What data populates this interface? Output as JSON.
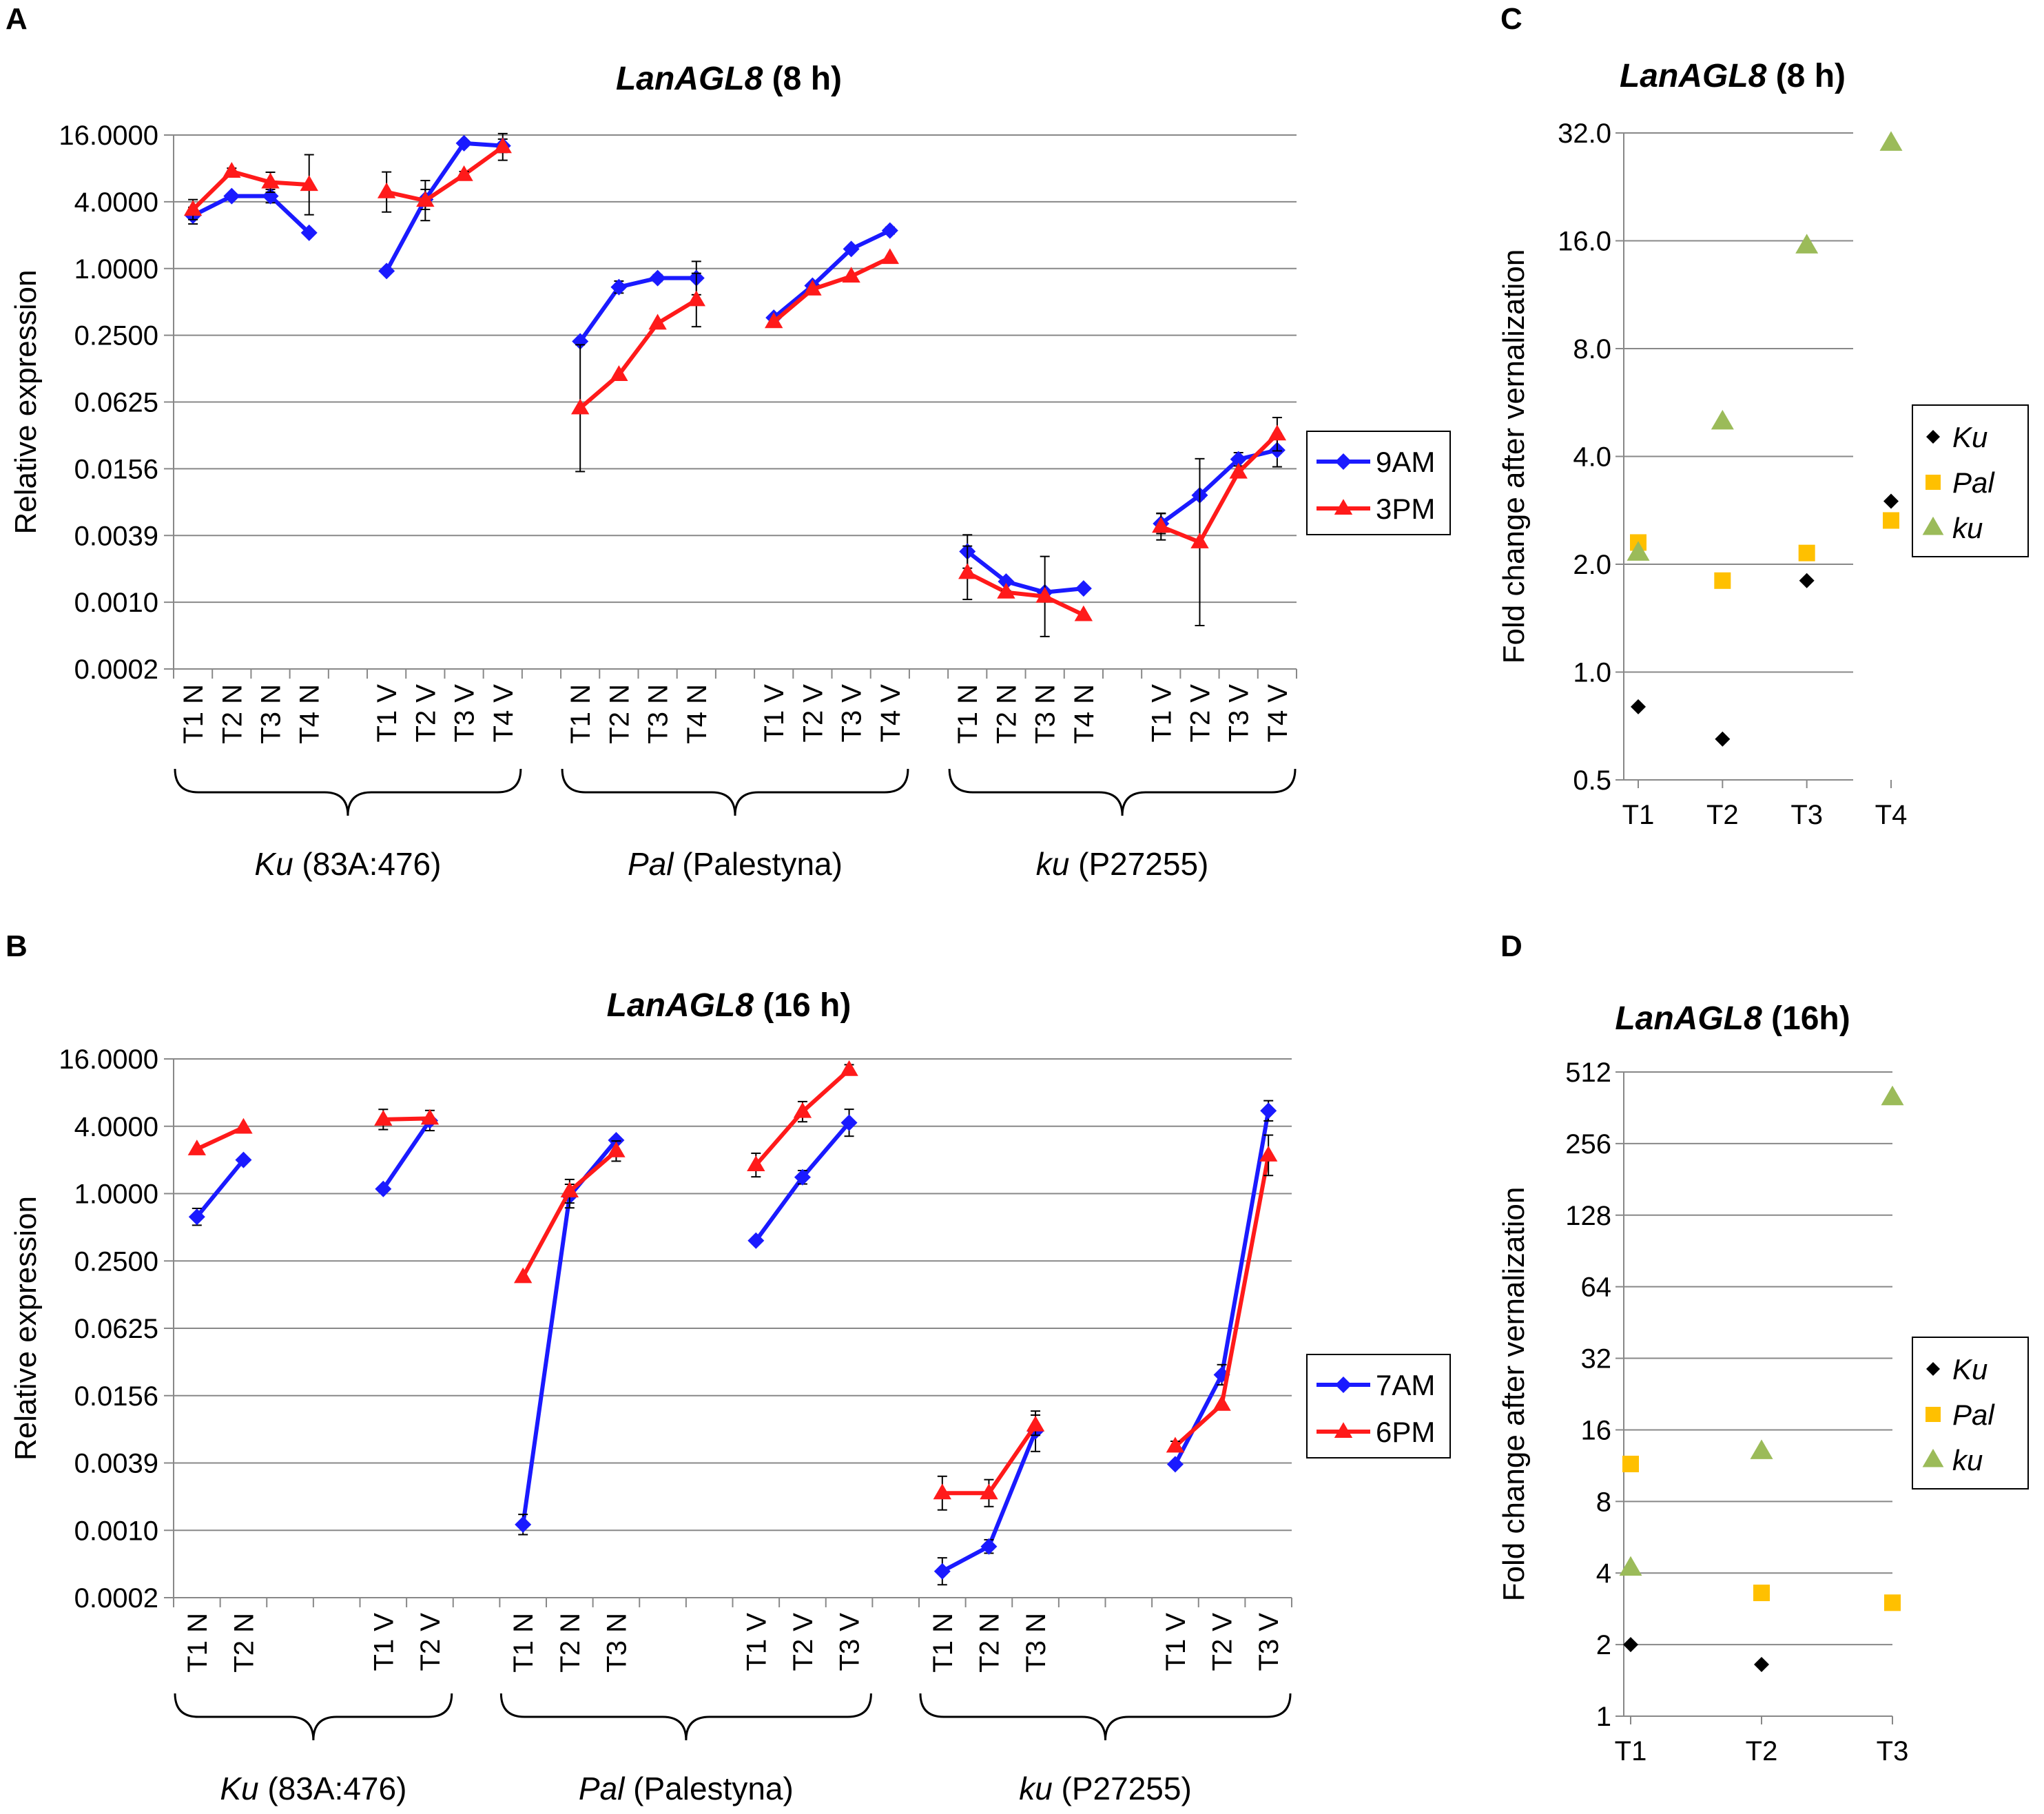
{
  "chart_data": [
    {
      "panel": "A",
      "type": "line",
      "title_gene": "LanAGL8",
      "title_rest": " (8 h)",
      "ylabel": "Relative expression",
      "yscale": "log2",
      "ylim": [
        0.000244,
        16
      ],
      "yticks": [
        "16.0000",
        "4.0000",
        "1.0000",
        "0.2500",
        "0.0625",
        "0.0156",
        "0.0039",
        "0.0010",
        "0.0002"
      ],
      "categories": [
        "T1 N",
        "T2 N",
        "T3 N",
        "T4 N",
        "",
        "T1 V",
        "T2 V",
        "T3 V",
        "T4 V",
        "",
        "T1 N",
        "T2 N",
        "T3 N",
        "T4 N",
        "",
        "T1 V",
        "T2 V",
        "T3 V",
        "T4 V",
        "",
        "T1 N",
        "T2 N",
        "T3 N",
        "T4 N",
        "",
        "T1 V",
        "T2 V",
        "T3 V",
        "T4 V"
      ],
      "groups": [
        {
          "name": "Ku",
          "rest": " (83A:476)",
          "first": 0,
          "last": 8
        },
        {
          "name": "Pal",
          "rest": " (Palestyna)",
          "first": 10,
          "last": 18
        },
        {
          "name": "ku",
          "rest": " (P27255)",
          "first": 20,
          "last": 28
        }
      ],
      "series": [
        {
          "name": "9AM",
          "color": "#1a1aff",
          "marker": "diamond",
          "segments": [
            {
              "start": 0,
              "values": [
                3.0,
                4.5,
                4.5,
                2.1
              ],
              "err": [
                0.25,
                0.08,
                0.2,
                0
              ]
            },
            {
              "start": 5,
              "values": [
                0.95,
                4.2,
                13.5,
                12.8
              ],
              "err": [
                0,
                0.3,
                0,
                0.2
              ]
            },
            {
              "start": 10,
              "values": [
                0.22,
                0.68,
                0.82,
                0.82
              ],
              "err": [
                0,
                0.18,
                0.1,
                0.5
              ]
            },
            {
              "start": 15,
              "values": [
                0.36,
                0.7,
                1.5,
                2.2
              ],
              "err": [
                0,
                0,
                0,
                0.1
              ]
            },
            {
              "start": 20,
              "values": [
                0.0028,
                0.0015,
                0.0012,
                0.0013
              ],
              "err": [
                0.5,
                0.05,
                0,
                0
              ]
            },
            {
              "start": 25,
              "values": [
                0.005,
                0.009,
                0.019,
                0.023
              ],
              "err": [
                0.3,
                0.1,
                0.2,
                0.5
              ]
            }
          ]
        },
        {
          "name": "3PM",
          "color": "#ff1a1a",
          "marker": "triangle",
          "segments": [
            {
              "start": 0,
              "values": [
                3.4,
                7.5,
                6.0,
                5.7
              ],
              "err": [
                0.3,
                0.1,
                0.3,
                0.9
              ]
            },
            {
              "start": 5,
              "values": [
                4.9,
                4.1,
                7.0,
                12.5
              ],
              "err": [
                0.6,
                0.6,
                0.1,
                0.4
              ]
            },
            {
              "start": 10,
              "values": [
                0.055,
                0.11,
                0.32,
                0.52
              ],
              "err": [
                1.9,
                0,
                0,
                0.8
              ]
            },
            {
              "start": 15,
              "values": [
                0.33,
                0.65,
                0.85,
                1.25
              ],
              "err": [
                0,
                0,
                0,
                0
              ]
            },
            {
              "start": 20,
              "values": [
                0.0018,
                0.0012,
                0.0011,
                0.00075
              ],
              "err": [
                0.8,
                0.05,
                1.2,
                0
              ]
            },
            {
              "start": 25,
              "values": [
                0.0047,
                0.0034,
                0.0145,
                0.032
              ],
              "err": [
                0.4,
                2.5,
                0,
                0.5
              ]
            }
          ]
        }
      ],
      "legend": [
        "9AM",
        "3PM"
      ]
    },
    {
      "panel": "B",
      "type": "line",
      "title_gene": "LanAGL8",
      "title_rest": " (16 h)",
      "ylabel": "Relative expression",
      "yscale": "log2",
      "ylim": [
        0.000244,
        16
      ],
      "yticks": [
        "16.0000",
        "4.0000",
        "1.0000",
        "0.2500",
        "0.0625",
        "0.0156",
        "0.0039",
        "0.0010",
        "0.0002"
      ],
      "categories": [
        "T1 N",
        "T2 N",
        "",
        "",
        "T1 V",
        "T2 V",
        "",
        "T1 N",
        "T2 N",
        "T3 N",
        "",
        "",
        "T1 V",
        "T2 V",
        "T3 V",
        "",
        "T1 N",
        "T2 N",
        "T3 N",
        "",
        "",
        "T1 V",
        "T2 V",
        "T3 V"
      ],
      "groups": [
        {
          "name": "Ku",
          "rest": " (83A:476)",
          "first": 0,
          "last": 5
        },
        {
          "name": "Pal",
          "rest": " (Palestyna)",
          "first": 7,
          "last": 14
        },
        {
          "name": "ku",
          "rest": " (P27255)",
          "first": 16,
          "last": 23
        }
      ],
      "series": [
        {
          "name": "7AM",
          "color": "#1a1aff",
          "marker": "diamond",
          "segments": [
            {
              "start": 0,
              "values": [
                0.62,
                2.0
              ],
              "err": [
                0.25,
                0
              ]
            },
            {
              "start": 4,
              "values": [
                1.1,
                4.5
              ],
              "err": [
                0,
                0.3
              ]
            },
            {
              "start": 7,
              "values": [
                0.0011,
                0.95,
                3.0
              ],
              "err": [
                0.3,
                0.35,
                0
              ]
            },
            {
              "start": 12,
              "values": [
                0.38,
                1.4,
                4.3
              ],
              "err": [
                0,
                0.2,
                0.4
              ]
            },
            {
              "start": 16,
              "values": [
                0.00042,
                0.0007,
                0.0075
              ],
              "err": [
                0.4,
                0.2,
                0.6
              ]
            },
            {
              "start": 21,
              "values": [
                0.0038,
                0.024,
                5.5
              ],
              "err": [
                0,
                0.3,
                0.3
              ]
            }
          ]
        },
        {
          "name": "6PM",
          "color": "#ff1a1a",
          "marker": "triangle",
          "segments": [
            {
              "start": 0,
              "values": [
                2.5,
                3.9
              ],
              "err": [
                0,
                0
              ]
            },
            {
              "start": 4,
              "values": [
                4.6,
                4.7
              ],
              "err": [
                0.3,
                0
              ]
            },
            {
              "start": 7,
              "values": [
                0.18,
                1.05,
                2.4
              ],
              "err": [
                0,
                0.35,
                0.3
              ]
            },
            {
              "start": 12,
              "values": [
                1.8,
                5.4,
                12.8
              ],
              "err": [
                0.35,
                0.3,
                0.15
              ]
            },
            {
              "start": 16,
              "values": [
                0.0021,
                0.0021,
                0.0085
              ],
              "err": [
                0.5,
                0.4,
                0.3
              ]
            },
            {
              "start": 21,
              "values": [
                0.0055,
                0.013,
                2.2
              ],
              "err": [
                0.15,
                0,
                0.6
              ]
            }
          ]
        }
      ],
      "legend": [
        "7AM",
        "6PM"
      ]
    },
    {
      "panel": "C",
      "type": "scatter",
      "title_gene": "LanAGL8",
      "title_rest": " (8 h)",
      "ylabel": "Fold change after vernalization",
      "yscale": "log2",
      "ylim": [
        0.5,
        32
      ],
      "yticks": [
        "32.0",
        "16.0",
        "8.0",
        "4.0",
        "2.0",
        "1.0",
        "0.5"
      ],
      "categories": [
        "T1",
        "T2",
        "T3",
        "T4"
      ],
      "series": [
        {
          "name": "Ku",
          "color": "#000000",
          "marker": "diamond",
          "values": [
            0.8,
            0.65,
            1.8,
            3.0
          ]
        },
        {
          "name": "Pal",
          "color": "#ffc000",
          "marker": "square",
          "values": [
            2.3,
            1.8,
            2.15,
            2.65
          ]
        },
        {
          "name": "ku",
          "color": "#9bbb59",
          "marker": "triangle",
          "values": [
            2.15,
            5.0,
            15.5,
            30.0
          ]
        }
      ],
      "legend": [
        "Ku",
        "Pal",
        "ku"
      ]
    },
    {
      "panel": "D",
      "type": "scatter",
      "title_gene": "LanAGL8",
      "title_rest": " (16h)",
      "ylabel": "Fold change after vernalization",
      "yscale": "log2",
      "ylim": [
        1,
        512
      ],
      "yticks": [
        "512",
        "256",
        "128",
        "64",
        "32",
        "16",
        "8",
        "4",
        "2",
        "1"
      ],
      "categories": [
        "T1",
        "T2",
        "T3"
      ],
      "series": [
        {
          "name": "Ku",
          "color": "#000000",
          "marker": "diamond",
          "values": [
            2.0,
            1.65
          ]
        },
        {
          "name": "Pal",
          "color": "#ffc000",
          "marker": "square",
          "values": [
            11.5,
            3.3,
            3.0
          ]
        },
        {
          "name": "ku",
          "color": "#9bbb59",
          "marker": "triangle",
          "values": [
            4.2,
            13.0,
            400
          ]
        }
      ],
      "legend": [
        "Ku",
        "Pal",
        "ku"
      ]
    }
  ]
}
